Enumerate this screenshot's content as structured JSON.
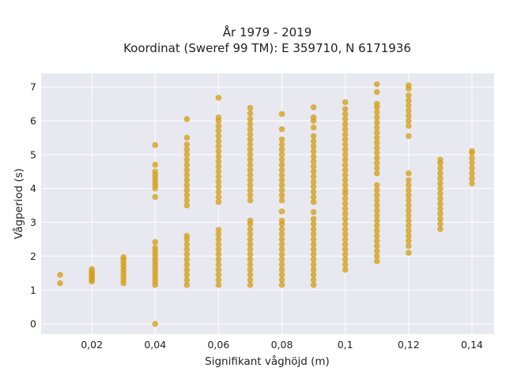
{
  "chart_data": {
    "type": "scatter",
    "title": "År 1979 - 2019",
    "subtitle": "Koordinat (Sweref 99 TM): E 359710, N 6171936",
    "xlabel": "Signifikant våghöjd (m)",
    "ylabel": "Vågperiod (s)",
    "xlim": [
      0.004,
      0.147
    ],
    "ylim": [
      -0.3,
      7.4
    ],
    "x_ticks": [
      0.02,
      0.04,
      0.06,
      0.08,
      0.1,
      0.12,
      0.14
    ],
    "x_tick_labels": [
      "0,02",
      "0,04",
      "0,06",
      "0,08",
      "0,1",
      "0,12",
      "0,14"
    ],
    "y_ticks": [
      0,
      1,
      2,
      3,
      4,
      5,
      6,
      7
    ],
    "y_tick_labels": [
      "0",
      "1",
      "2",
      "3",
      "4",
      "5",
      "6",
      "7"
    ],
    "grid": true,
    "marker_color": "#d4a01a",
    "background_color": "#e8e8f0",
    "series": [
      {
        "points": [
          [
            0.01,
            1.2
          ],
          [
            0.01,
            1.45
          ],
          [
            0.02,
            1.25
          ],
          [
            0.02,
            1.3
          ],
          [
            0.02,
            1.35
          ],
          [
            0.02,
            1.4
          ],
          [
            0.02,
            1.45
          ],
          [
            0.02,
            1.5
          ],
          [
            0.02,
            1.55
          ],
          [
            0.02,
            1.62
          ],
          [
            0.03,
            1.2
          ],
          [
            0.03,
            1.3
          ],
          [
            0.03,
            1.4
          ],
          [
            0.03,
            1.5
          ],
          [
            0.03,
            1.6
          ],
          [
            0.03,
            1.7
          ],
          [
            0.03,
            1.8
          ],
          [
            0.03,
            1.9
          ],
          [
            0.03,
            1.97
          ],
          [
            0.04,
            0.0
          ],
          [
            0.04,
            1.15
          ],
          [
            0.04,
            1.25
          ],
          [
            0.04,
            1.35
          ],
          [
            0.04,
            1.45
          ],
          [
            0.04,
            1.55
          ],
          [
            0.04,
            1.65
          ],
          [
            0.04,
            1.75
          ],
          [
            0.04,
            1.85
          ],
          [
            0.04,
            1.95
          ],
          [
            0.04,
            2.05
          ],
          [
            0.04,
            2.15
          ],
          [
            0.04,
            2.25
          ],
          [
            0.04,
            2.42
          ],
          [
            0.04,
            3.75
          ],
          [
            0.04,
            4.0
          ],
          [
            0.04,
            4.1
          ],
          [
            0.04,
            4.2
          ],
          [
            0.04,
            4.3
          ],
          [
            0.04,
            4.4
          ],
          [
            0.04,
            4.5
          ],
          [
            0.04,
            4.7
          ],
          [
            0.04,
            5.28
          ],
          [
            0.05,
            1.15
          ],
          [
            0.05,
            1.3
          ],
          [
            0.05,
            1.45
          ],
          [
            0.05,
            1.6
          ],
          [
            0.05,
            1.75
          ],
          [
            0.05,
            1.9
          ],
          [
            0.05,
            2.05
          ],
          [
            0.05,
            2.2
          ],
          [
            0.05,
            2.35
          ],
          [
            0.05,
            2.5
          ],
          [
            0.05,
            2.6
          ],
          [
            0.05,
            3.5
          ],
          [
            0.05,
            3.65
          ],
          [
            0.05,
            3.8
          ],
          [
            0.05,
            3.95
          ],
          [
            0.05,
            4.1
          ],
          [
            0.05,
            4.25
          ],
          [
            0.05,
            4.4
          ],
          [
            0.05,
            4.55
          ],
          [
            0.05,
            4.7
          ],
          [
            0.05,
            4.85
          ],
          [
            0.05,
            5.0
          ],
          [
            0.05,
            5.15
          ],
          [
            0.05,
            5.3
          ],
          [
            0.05,
            5.5
          ],
          [
            0.05,
            6.05
          ],
          [
            0.06,
            1.15
          ],
          [
            0.06,
            1.3
          ],
          [
            0.06,
            1.45
          ],
          [
            0.06,
            1.6
          ],
          [
            0.06,
            1.75
          ],
          [
            0.06,
            1.9
          ],
          [
            0.06,
            2.05
          ],
          [
            0.06,
            2.2
          ],
          [
            0.06,
            2.35
          ],
          [
            0.06,
            2.5
          ],
          [
            0.06,
            2.65
          ],
          [
            0.06,
            2.78
          ],
          [
            0.06,
            3.6
          ],
          [
            0.06,
            3.75
          ],
          [
            0.06,
            3.9
          ],
          [
            0.06,
            4.05
          ],
          [
            0.06,
            4.2
          ],
          [
            0.06,
            4.35
          ],
          [
            0.06,
            4.5
          ],
          [
            0.06,
            4.65
          ],
          [
            0.06,
            4.8
          ],
          [
            0.06,
            4.95
          ],
          [
            0.06,
            5.1
          ],
          [
            0.06,
            5.25
          ],
          [
            0.06,
            5.4
          ],
          [
            0.06,
            5.55
          ],
          [
            0.06,
            5.7
          ],
          [
            0.06,
            5.85
          ],
          [
            0.06,
            6.0
          ],
          [
            0.06,
            6.1
          ],
          [
            0.06,
            6.68
          ],
          [
            0.07,
            1.15
          ],
          [
            0.07,
            1.3
          ],
          [
            0.07,
            1.45
          ],
          [
            0.07,
            1.6
          ],
          [
            0.07,
            1.75
          ],
          [
            0.07,
            1.9
          ],
          [
            0.07,
            2.05
          ],
          [
            0.07,
            2.2
          ],
          [
            0.07,
            2.35
          ],
          [
            0.07,
            2.5
          ],
          [
            0.07,
            2.65
          ],
          [
            0.07,
            2.8
          ],
          [
            0.07,
            2.95
          ],
          [
            0.07,
            3.05
          ],
          [
            0.07,
            3.65
          ],
          [
            0.07,
            3.8
          ],
          [
            0.07,
            3.95
          ],
          [
            0.07,
            4.1
          ],
          [
            0.07,
            4.25
          ],
          [
            0.07,
            4.4
          ],
          [
            0.07,
            4.55
          ],
          [
            0.07,
            4.7
          ],
          [
            0.07,
            4.85
          ],
          [
            0.07,
            5.0
          ],
          [
            0.07,
            5.15
          ],
          [
            0.07,
            5.3
          ],
          [
            0.07,
            5.45
          ],
          [
            0.07,
            5.6
          ],
          [
            0.07,
            5.75
          ],
          [
            0.07,
            5.9
          ],
          [
            0.07,
            6.05
          ],
          [
            0.07,
            6.22
          ],
          [
            0.07,
            6.38
          ],
          [
            0.08,
            1.15
          ],
          [
            0.08,
            1.3
          ],
          [
            0.08,
            1.45
          ],
          [
            0.08,
            1.6
          ],
          [
            0.08,
            1.75
          ],
          [
            0.08,
            1.9
          ],
          [
            0.08,
            2.05
          ],
          [
            0.08,
            2.2
          ],
          [
            0.08,
            2.35
          ],
          [
            0.08,
            2.5
          ],
          [
            0.08,
            2.65
          ],
          [
            0.08,
            2.8
          ],
          [
            0.08,
            2.95
          ],
          [
            0.08,
            3.05
          ],
          [
            0.08,
            3.32
          ],
          [
            0.08,
            3.65
          ],
          [
            0.08,
            3.8
          ],
          [
            0.08,
            3.95
          ],
          [
            0.08,
            4.1
          ],
          [
            0.08,
            4.25
          ],
          [
            0.08,
            4.4
          ],
          [
            0.08,
            4.55
          ],
          [
            0.08,
            4.7
          ],
          [
            0.08,
            4.85
          ],
          [
            0.08,
            5.0
          ],
          [
            0.08,
            5.15
          ],
          [
            0.08,
            5.3
          ],
          [
            0.08,
            5.45
          ],
          [
            0.08,
            5.75
          ],
          [
            0.08,
            6.2
          ],
          [
            0.09,
            1.15
          ],
          [
            0.09,
            1.3
          ],
          [
            0.09,
            1.45
          ],
          [
            0.09,
            1.6
          ],
          [
            0.09,
            1.75
          ],
          [
            0.09,
            1.9
          ],
          [
            0.09,
            2.05
          ],
          [
            0.09,
            2.2
          ],
          [
            0.09,
            2.35
          ],
          [
            0.09,
            2.5
          ],
          [
            0.09,
            2.65
          ],
          [
            0.09,
            2.8
          ],
          [
            0.09,
            2.95
          ],
          [
            0.09,
            3.1
          ],
          [
            0.09,
            3.3
          ],
          [
            0.09,
            3.6
          ],
          [
            0.09,
            3.75
          ],
          [
            0.09,
            3.9
          ],
          [
            0.09,
            4.05
          ],
          [
            0.09,
            4.2
          ],
          [
            0.09,
            4.35
          ],
          [
            0.09,
            4.5
          ],
          [
            0.09,
            4.65
          ],
          [
            0.09,
            4.8
          ],
          [
            0.09,
            4.95
          ],
          [
            0.09,
            5.1
          ],
          [
            0.09,
            5.25
          ],
          [
            0.09,
            5.4
          ],
          [
            0.09,
            5.55
          ],
          [
            0.09,
            5.8
          ],
          [
            0.09,
            6.0
          ],
          [
            0.09,
            6.1
          ],
          [
            0.09,
            6.4
          ],
          [
            0.1,
            1.6
          ],
          [
            0.1,
            1.75
          ],
          [
            0.1,
            1.9
          ],
          [
            0.1,
            2.05
          ],
          [
            0.1,
            2.2
          ],
          [
            0.1,
            2.35
          ],
          [
            0.1,
            2.5
          ],
          [
            0.1,
            2.65
          ],
          [
            0.1,
            2.8
          ],
          [
            0.1,
            2.95
          ],
          [
            0.1,
            3.1
          ],
          [
            0.1,
            3.25
          ],
          [
            0.1,
            3.4
          ],
          [
            0.1,
            3.55
          ],
          [
            0.1,
            3.7
          ],
          [
            0.1,
            3.85
          ],
          [
            0.1,
            3.95
          ],
          [
            0.1,
            4.1
          ],
          [
            0.1,
            4.25
          ],
          [
            0.1,
            4.4
          ],
          [
            0.1,
            4.55
          ],
          [
            0.1,
            4.7
          ],
          [
            0.1,
            4.85
          ],
          [
            0.1,
            5.0
          ],
          [
            0.1,
            5.15
          ],
          [
            0.1,
            5.3
          ],
          [
            0.1,
            5.45
          ],
          [
            0.1,
            5.6
          ],
          [
            0.1,
            5.75
          ],
          [
            0.1,
            5.9
          ],
          [
            0.1,
            6.05
          ],
          [
            0.1,
            6.2
          ],
          [
            0.1,
            6.35
          ],
          [
            0.1,
            6.55
          ],
          [
            0.11,
            1.85
          ],
          [
            0.11,
            2.0
          ],
          [
            0.11,
            2.15
          ],
          [
            0.11,
            2.3
          ],
          [
            0.11,
            2.45
          ],
          [
            0.11,
            2.6
          ],
          [
            0.11,
            2.75
          ],
          [
            0.11,
            2.9
          ],
          [
            0.11,
            3.05
          ],
          [
            0.11,
            3.2
          ],
          [
            0.11,
            3.35
          ],
          [
            0.11,
            3.5
          ],
          [
            0.11,
            3.65
          ],
          [
            0.11,
            3.8
          ],
          [
            0.11,
            3.95
          ],
          [
            0.11,
            4.1
          ],
          [
            0.11,
            4.45
          ],
          [
            0.11,
            4.6
          ],
          [
            0.11,
            4.75
          ],
          [
            0.11,
            4.9
          ],
          [
            0.11,
            5.05
          ],
          [
            0.11,
            5.2
          ],
          [
            0.11,
            5.35
          ],
          [
            0.11,
            5.5
          ],
          [
            0.11,
            5.65
          ],
          [
            0.11,
            5.8
          ],
          [
            0.11,
            5.95
          ],
          [
            0.11,
            6.1
          ],
          [
            0.11,
            6.25
          ],
          [
            0.11,
            6.4
          ],
          [
            0.11,
            6.5
          ],
          [
            0.11,
            6.85
          ],
          [
            0.11,
            7.08
          ],
          [
            0.12,
            2.1
          ],
          [
            0.12,
            2.3
          ],
          [
            0.12,
            2.45
          ],
          [
            0.12,
            2.6
          ],
          [
            0.12,
            2.75
          ],
          [
            0.12,
            2.9
          ],
          [
            0.12,
            3.05
          ],
          [
            0.12,
            3.2
          ],
          [
            0.12,
            3.35
          ],
          [
            0.12,
            3.5
          ],
          [
            0.12,
            3.65
          ],
          [
            0.12,
            3.8
          ],
          [
            0.12,
            3.95
          ],
          [
            0.12,
            4.1
          ],
          [
            0.12,
            4.25
          ],
          [
            0.12,
            4.45
          ],
          [
            0.12,
            5.55
          ],
          [
            0.12,
            5.85
          ],
          [
            0.12,
            6.0
          ],
          [
            0.12,
            6.15
          ],
          [
            0.12,
            6.3
          ],
          [
            0.12,
            6.45
          ],
          [
            0.12,
            6.6
          ],
          [
            0.12,
            6.75
          ],
          [
            0.12,
            6.95
          ],
          [
            0.12,
            7.05
          ],
          [
            0.13,
            2.8
          ],
          [
            0.13,
            2.95
          ],
          [
            0.13,
            3.1
          ],
          [
            0.13,
            3.25
          ],
          [
            0.13,
            3.4
          ],
          [
            0.13,
            3.55
          ],
          [
            0.13,
            3.7
          ],
          [
            0.13,
            3.85
          ],
          [
            0.13,
            4.0
          ],
          [
            0.13,
            4.15
          ],
          [
            0.13,
            4.3
          ],
          [
            0.13,
            4.45
          ],
          [
            0.13,
            4.6
          ],
          [
            0.13,
            4.75
          ],
          [
            0.13,
            4.85
          ],
          [
            0.14,
            4.15
          ],
          [
            0.14,
            4.3
          ],
          [
            0.14,
            4.45
          ],
          [
            0.14,
            4.6
          ],
          [
            0.14,
            4.75
          ],
          [
            0.14,
            4.9
          ],
          [
            0.14,
            5.05
          ],
          [
            0.14,
            5.1
          ]
        ]
      }
    ]
  }
}
